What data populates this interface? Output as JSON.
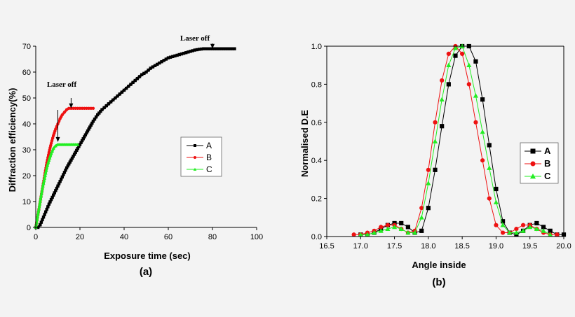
{
  "colors": {
    "A": "#000000",
    "B": "#ee1111",
    "C": "#22ee22",
    "background": "#f3f3f3"
  },
  "chart_data": [
    {
      "type": "line",
      "panel_label": "(a)",
      "xlabel": "Exposure time (sec)",
      "ylabel": "Diffraction efficiency(%)",
      "xlim": [
        0,
        100
      ],
      "ylim": [
        0,
        70
      ],
      "xticks": [
        0,
        20,
        40,
        60,
        80,
        100
      ],
      "yticks": [
        0,
        10,
        20,
        30,
        40,
        50,
        60,
        70
      ],
      "grid": false,
      "legend_position": "right-middle",
      "annotations": [
        {
          "text": "Laser off",
          "points_to": [
            16,
            46
          ]
        },
        {
          "text": "Laser off",
          "points_to": [
            80,
            69
          ]
        }
      ],
      "series": [
        {
          "name": "A",
          "marker": "square",
          "color": "#000000",
          "x": [
            0,
            1,
            2,
            3,
            4,
            5,
            6,
            8,
            10,
            12,
            14,
            16,
            18,
            20,
            22,
            24,
            26,
            28,
            30,
            32,
            34,
            36,
            38,
            40,
            42,
            44,
            46,
            48,
            50,
            52,
            54,
            56,
            58,
            60,
            62,
            64,
            66,
            68,
            70,
            72,
            74,
            76,
            78,
            80,
            82,
            84,
            86,
            88,
            90
          ],
          "y": [
            0,
            0,
            1,
            3,
            5,
            7,
            9,
            12.5,
            16,
            19.5,
            23,
            26,
            29,
            32,
            35,
            38,
            41,
            43.5,
            45.5,
            47,
            48.5,
            50,
            51.5,
            53,
            54.5,
            56,
            57.5,
            59,
            60,
            61.5,
            62.5,
            63.5,
            64.5,
            65.5,
            66,
            66.5,
            67,
            67.5,
            68,
            68.5,
            68.8,
            69,
            69,
            69,
            69,
            69,
            69,
            69,
            69
          ]
        },
        {
          "name": "B",
          "marker": "circle",
          "color": "#ee1111",
          "x": [
            0,
            1,
            2,
            3,
            4,
            5,
            6,
            7,
            8,
            9,
            10,
            11,
            12,
            13,
            14,
            15,
            16,
            18,
            20,
            22,
            24,
            26
          ],
          "y": [
            0,
            5,
            10,
            15,
            20,
            25,
            29,
            32.5,
            35.5,
            38,
            40,
            42,
            43.5,
            44.5,
            45.5,
            46,
            46,
            46,
            46,
            46,
            46,
            46
          ]
        },
        {
          "name": "C",
          "marker": "triangle",
          "color": "#22ee22",
          "x": [
            0,
            1,
            2,
            3,
            4,
            5,
            6,
            7,
            8,
            9,
            10,
            12,
            14,
            16,
            18,
            19
          ],
          "y": [
            0,
            5,
            10,
            15,
            19,
            23,
            26,
            28.5,
            30.5,
            31.5,
            32,
            32,
            32,
            32,
            32,
            32
          ]
        }
      ]
    },
    {
      "type": "line",
      "panel_label": "(b)",
      "xlabel": "Angle inside",
      "ylabel": "Normalised D.E",
      "xlim": [
        16.5,
        20.0
      ],
      "ylim": [
        0,
        1.0
      ],
      "xticks": [
        "16.5",
        "17.0",
        "17.5",
        "18.0",
        "18.5",
        "19.0",
        "19.5",
        "20.0"
      ],
      "yticks": [
        "0.0",
        "0.2",
        "0.4",
        "0.6",
        "0.8",
        "1.0"
      ],
      "grid": false,
      "legend_position": "right-middle",
      "series": [
        {
          "name": "A",
          "marker": "square",
          "color": "#000000",
          "x": [
            17.0,
            17.1,
            17.2,
            17.3,
            17.4,
            17.5,
            17.6,
            17.7,
            17.8,
            17.9,
            18.0,
            18.1,
            18.2,
            18.3,
            18.4,
            18.5,
            18.6,
            18.7,
            18.8,
            18.9,
            19.0,
            19.1,
            19.2,
            19.3,
            19.4,
            19.5,
            19.6,
            19.7,
            19.8,
            19.9,
            20.0
          ],
          "y": [
            0.01,
            0.01,
            0.02,
            0.04,
            0.06,
            0.07,
            0.07,
            0.05,
            0.02,
            0.03,
            0.15,
            0.35,
            0.58,
            0.8,
            0.95,
            1.0,
            1.0,
            0.92,
            0.72,
            0.48,
            0.25,
            0.08,
            0.02,
            0.01,
            0.03,
            0.06,
            0.07,
            0.05,
            0.03,
            0.01,
            0.01
          ]
        },
        {
          "name": "B",
          "marker": "circle",
          "color": "#ee1111",
          "x": [
            16.9,
            17.0,
            17.1,
            17.2,
            17.3,
            17.4,
            17.5,
            17.6,
            17.7,
            17.8,
            17.9,
            18.0,
            18.1,
            18.2,
            18.3,
            18.4,
            18.5,
            18.6,
            18.7,
            18.8,
            18.9,
            19.0,
            19.1,
            19.2,
            19.3,
            19.4,
            19.5,
            19.6,
            19.7,
            19.8,
            19.9
          ],
          "y": [
            0.01,
            0.01,
            0.02,
            0.03,
            0.05,
            0.06,
            0.06,
            0.04,
            0.02,
            0.03,
            0.15,
            0.35,
            0.6,
            0.82,
            0.96,
            1.0,
            0.96,
            0.8,
            0.6,
            0.4,
            0.2,
            0.06,
            0.02,
            0.02,
            0.04,
            0.06,
            0.06,
            0.04,
            0.02,
            0.01,
            0.01
          ]
        },
        {
          "name": "C",
          "marker": "triangle",
          "color": "#22ee22",
          "x": [
            17.0,
            17.1,
            17.2,
            17.3,
            17.4,
            17.5,
            17.6,
            17.7,
            17.8,
            17.9,
            18.0,
            18.1,
            18.2,
            18.3,
            18.4,
            18.5,
            18.6,
            18.7,
            18.8,
            18.9,
            19.0,
            19.1,
            19.2,
            19.3,
            19.4,
            19.5,
            19.6,
            19.7,
            19.8
          ],
          "y": [
            0.01,
            0.01,
            0.02,
            0.03,
            0.04,
            0.05,
            0.04,
            0.02,
            0.02,
            0.1,
            0.28,
            0.5,
            0.72,
            0.9,
            0.99,
            1.0,
            0.9,
            0.74,
            0.55,
            0.36,
            0.18,
            0.06,
            0.02,
            0.02,
            0.03,
            0.05,
            0.04,
            0.03,
            0.01
          ]
        }
      ]
    }
  ]
}
